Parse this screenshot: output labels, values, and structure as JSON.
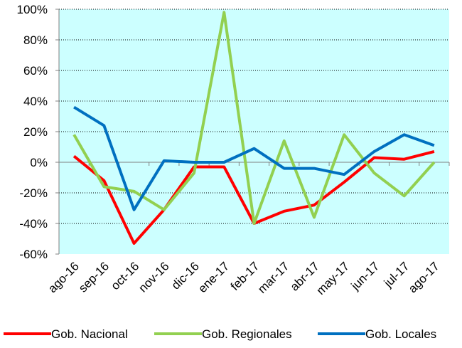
{
  "chart_data": {
    "type": "line",
    "categories": [
      "ago-16",
      "sep-16",
      "oct-16",
      "nov-16",
      "dic-16",
      "ene-17",
      "feb-17",
      "mar-17",
      "abr-17",
      "may-17",
      "jun-17",
      "jul-17",
      "ago-17"
    ],
    "series": [
      {
        "name": "Gob. Nacional",
        "color": "#ff0000",
        "values": [
          4,
          -12,
          -53,
          -31,
          -3,
          -3,
          -40,
          -32,
          -28,
          -13,
          3,
          2,
          7
        ]
      },
      {
        "name": "Gob. Regionales",
        "color": "#92d050",
        "values": [
          18,
          -16,
          -19,
          -31,
          -7,
          98,
          -40,
          14,
          -36,
          18,
          -7,
          -22,
          0
        ]
      },
      {
        "name": "Gob. Locales",
        "color": "#0070c0",
        "values": [
          36,
          24,
          -31,
          1,
          0,
          0,
          9,
          -4,
          -4,
          -8,
          7,
          18,
          11
        ]
      }
    ],
    "ylim": [
      -60,
      100
    ],
    "yticks": [
      {
        "value": -60,
        "label": "-60%"
      },
      {
        "value": -40,
        "label": "-40%"
      },
      {
        "value": -20,
        "label": "-20%"
      },
      {
        "value": 0,
        "label": "0%"
      },
      {
        "value": 20,
        "label": "20%"
      },
      {
        "value": 40,
        "label": "40%"
      },
      {
        "value": 60,
        "label": "60%"
      },
      {
        "value": 80,
        "label": "80%"
      },
      {
        "value": 100,
        "label": "100%"
      }
    ],
    "grid": true,
    "background": "#ccffff",
    "legend": "bottom"
  }
}
